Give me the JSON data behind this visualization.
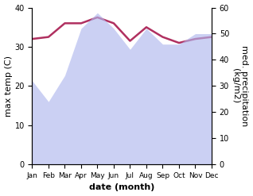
{
  "months": [
    1,
    2,
    3,
    4,
    5,
    6,
    7,
    8,
    9,
    10,
    11,
    12
  ],
  "month_labels": [
    "Jan",
    "Feb",
    "Mar",
    "Apr",
    "May",
    "Jun",
    "Jul",
    "Aug",
    "Sep",
    "Oct",
    "Nov",
    "Dec"
  ],
  "temp_max": [
    32.0,
    32.5,
    36.0,
    36.0,
    37.5,
    36.0,
    31.5,
    35.0,
    32.5,
    31.0,
    32.0,
    32.5
  ],
  "precip": [
    32.0,
    24.0,
    34.0,
    52.0,
    58.0,
    52.0,
    44.0,
    52.0,
    46.0,
    46.0,
    50.0,
    50.0
  ],
  "xlabel": "date (month)",
  "ylabel_left": "max temp (C)",
  "ylabel_right": "med. precipitation\n(kg/m2)",
  "ylim_left": [
    0,
    40
  ],
  "ylim_right": [
    0,
    60
  ],
  "temp_color": "#b03060",
  "precip_color": "#b0b8ee",
  "precip_alpha": 0.65,
  "temp_linewidth": 1.8,
  "background_color": "#ffffff",
  "tick_fontsize": 7,
  "label_fontsize": 8
}
